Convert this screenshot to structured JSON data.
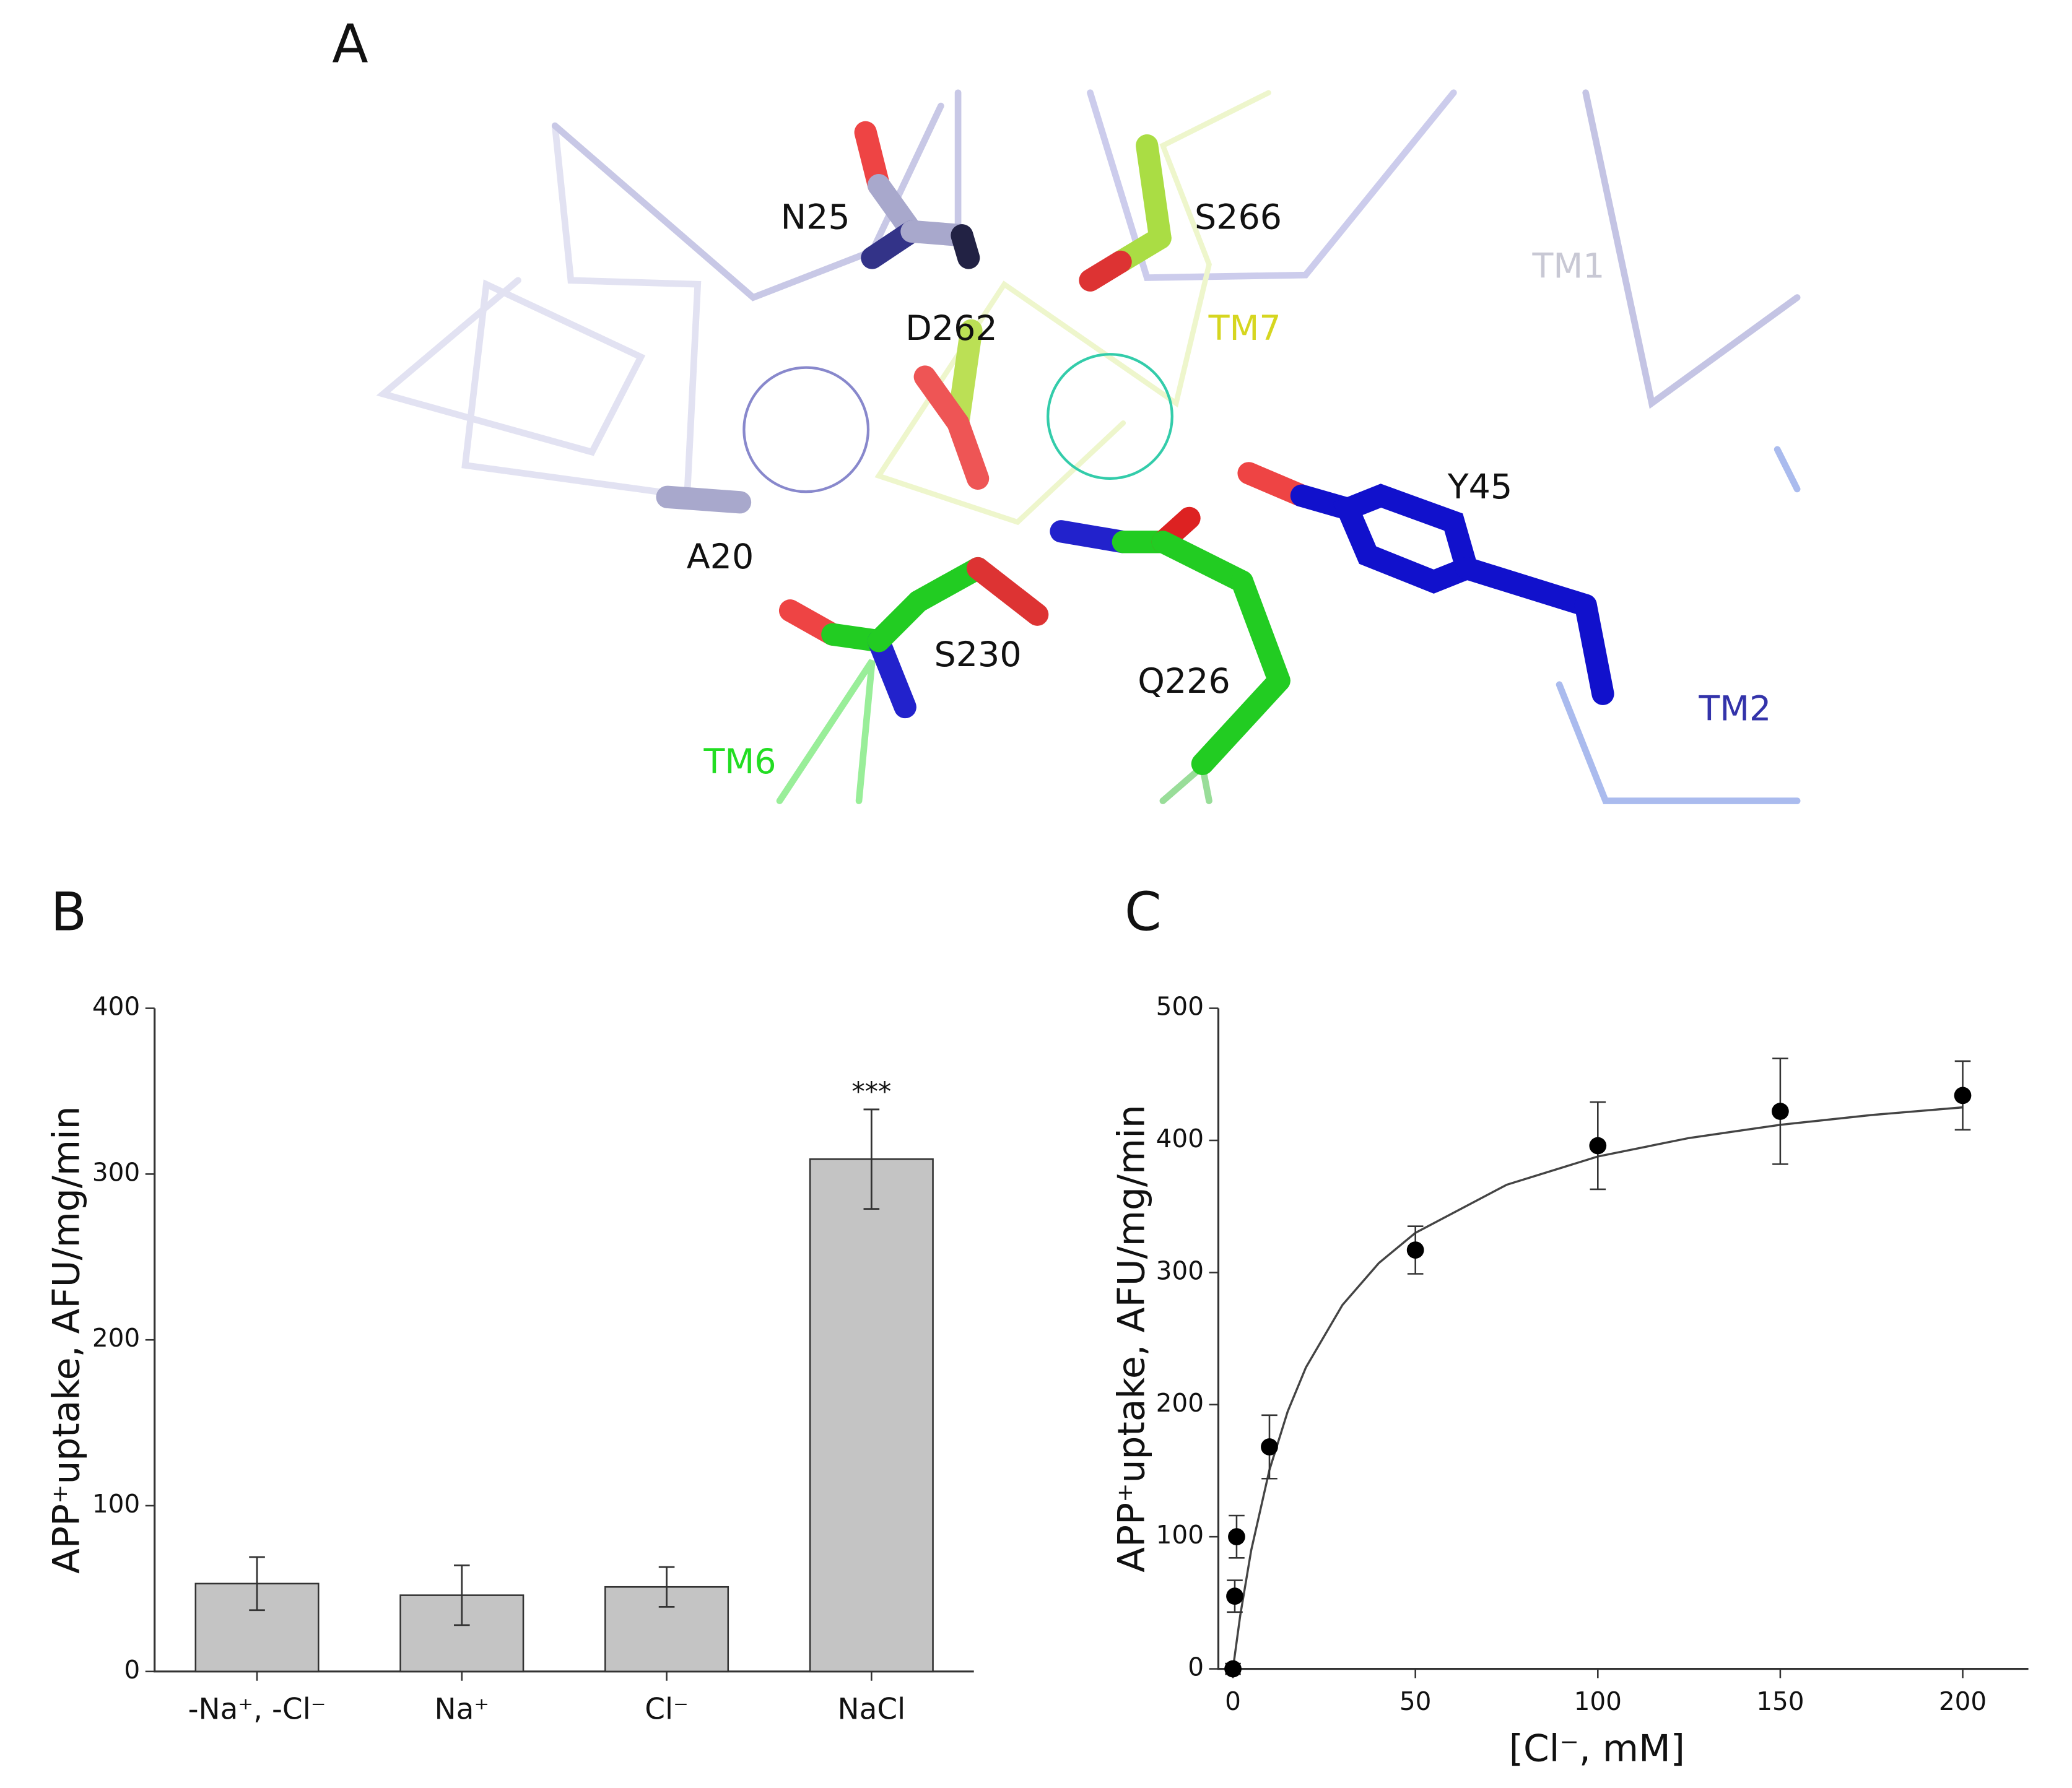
{
  "structure": {
    "panel_label": "A",
    "labels": [
      {
        "text": "N25",
        "color": "#111111"
      },
      {
        "text": "S266",
        "color": "#111111"
      },
      {
        "text": "TM1",
        "color": "#c8c8d4"
      },
      {
        "text": "D262",
        "color": "#111111"
      },
      {
        "text": "TM7",
        "color": "#d6d620"
      },
      {
        "text": "Y45",
        "color": "#111111"
      },
      {
        "text": "A20",
        "color": "#111111"
      },
      {
        "text": "S230",
        "color": "#111111"
      },
      {
        "text": "Q226",
        "color": "#111111"
      },
      {
        "text": "TM6",
        "color": "#22dd22"
      },
      {
        "text": "TM2",
        "color": "#3333aa"
      }
    ]
  },
  "chart_data": [
    {
      "type": "bar",
      "panel_label": "B",
      "y_label": "APP⁺uptake, AFU/mg/min",
      "categories": [
        "-Na⁺, -Cl⁻",
        "Na⁺",
        "Cl⁻",
        "NaCl"
      ],
      "values": [
        53,
        46,
        51,
        309
      ],
      "errors": [
        16,
        18,
        12,
        30
      ],
      "color": "#c4c4c4",
      "annotation": {
        "category_index": 3,
        "text": "***"
      },
      "ylim": [
        0,
        400
      ],
      "yticks": [
        0,
        100,
        200,
        300,
        400
      ]
    },
    {
      "type": "scatter",
      "panel_label": "C",
      "y_label": "APP⁺uptake, AFU/mg/min",
      "x_label": "[Cl⁻, mM]",
      "x": [
        0,
        0.5,
        1,
        10,
        50,
        100,
        150,
        200
      ],
      "values": [
        0,
        55,
        100,
        168,
        317,
        396,
        422,
        434
      ],
      "errors": [
        4,
        12,
        16,
        24,
        18,
        33,
        40,
        26
      ],
      "color": "#000000",
      "fit": {
        "x": [
          0,
          2,
          5,
          10,
          15,
          20,
          30,
          40,
          50,
          75,
          100,
          125,
          150,
          175,
          200
        ],
        "values": [
          0,
          40.5,
          89.7,
          150.6,
          194.8,
          228.2,
          275.4,
          307.2,
          330.0,
          366.4,
          387.8,
          401.8,
          411.8,
          419.2,
          425.0
        ],
        "color": "#444444"
      },
      "xlim": [
        -4,
        218
      ],
      "xticks": [
        0,
        50,
        100,
        150,
        200
      ],
      "ylim": [
        0,
        500
      ],
      "yticks": [
        0,
        100,
        200,
        300,
        400,
        500
      ]
    }
  ]
}
